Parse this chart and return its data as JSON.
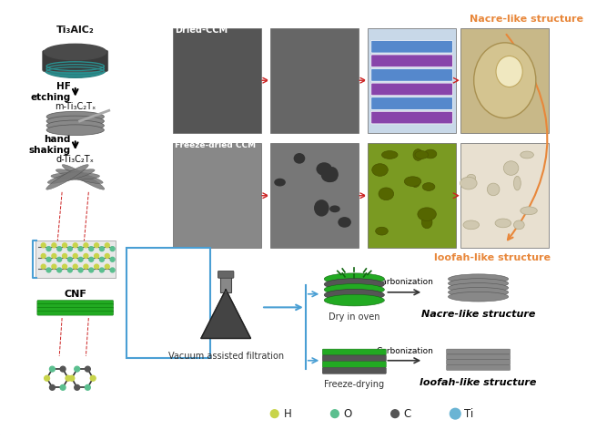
{
  "title": "",
  "background_color": "#ffffff",
  "border_color": "#4a9fd4",
  "border_style": "dashed",
  "left_column": {
    "title": "Ti₃AlC₂",
    "step1_label": "HF\netching",
    "step1_result": "m-Ti₃C₂Tₓ",
    "step2_label": "hand\nshaking",
    "step2_result": "d-Ti₃C₂Tₓ",
    "cnf_label": "CNF"
  },
  "middle_label": "Vacuum assisted filtration",
  "top_right": {
    "nacre_label": "Nacre-like structure",
    "loofah_label": "loofah-like structure",
    "dried_ccm": "Dried-CCM",
    "freeze_dried": "Freeze-dried CCM"
  },
  "bottom_right": {
    "dry_label": "Dry in oven",
    "freeze_label": "Freeze-drying",
    "carbonization": "Carbonization",
    "nacre_result": "Nacre-like structure",
    "loofah_result": "loofah-like structure"
  },
  "legend": {
    "items": [
      "H",
      "O",
      "C",
      "Ti"
    ],
    "colors": [
      "#c8d44a",
      "#5bbf8f",
      "#555555",
      "#6ab4d4"
    ]
  },
  "colors": {
    "arrow_dark": "#222222",
    "arrow_orange": "#e8873a",
    "arrow_blue": "#4a9fd4",
    "text_dark": "#111111",
    "text_orange": "#e8873a",
    "mxene_color": "#606060",
    "teal": "#3a9a8a",
    "green_bright": "#44cc44",
    "gray_dark": "#505050",
    "red_dashed": "#cc2222",
    "blue_bracket": "#4a9fd4"
  }
}
